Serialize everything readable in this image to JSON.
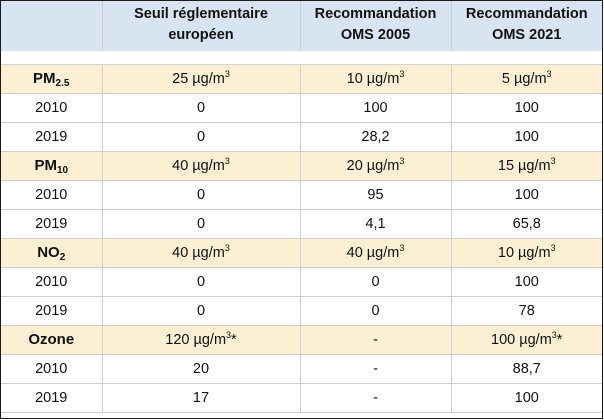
{
  "headers": {
    "col0": "",
    "col1_line1": "Seuil réglementaire",
    "col1_line2": "européen",
    "col2_line1": "Recommandation",
    "col2_line2": "OMS 2005",
    "col3_line1": "Recommandation",
    "col3_line2": "OMS 2021"
  },
  "groups": [
    {
      "name_main": "PM",
      "name_sub": "2.5",
      "eu": {
        "value": "25 µg/m",
        "sup": "3",
        "suffix": ""
      },
      "oms2005": {
        "value": "10 µg/m",
        "sup": "3",
        "suffix": ""
      },
      "oms2021": {
        "value": "5 µg/m",
        "sup": "3",
        "suffix": ""
      },
      "rows": [
        {
          "year": "2010",
          "eu": "0",
          "oms2005": "100",
          "oms2021": "100"
        },
        {
          "year": "2019",
          "eu": "0",
          "oms2005": "28,2",
          "oms2021": "100"
        }
      ]
    },
    {
      "name_main": "PM",
      "name_sub": "10",
      "eu": {
        "value": "40 µg/m",
        "sup": "3",
        "suffix": ""
      },
      "oms2005": {
        "value": "20 µg/m",
        "sup": "3",
        "suffix": ""
      },
      "oms2021": {
        "value": "15 µg/m",
        "sup": "3",
        "suffix": ""
      },
      "rows": [
        {
          "year": "2010",
          "eu": "0",
          "oms2005": "95",
          "oms2021": "100"
        },
        {
          "year": "2019",
          "eu": "0",
          "oms2005": "4,1",
          "oms2021": "65,8"
        }
      ]
    },
    {
      "name_main": "NO",
      "name_sub": "2",
      "eu": {
        "value": "40 µg/m",
        "sup": "3",
        "suffix": ""
      },
      "oms2005": {
        "value": "40 µg/m",
        "sup": "3",
        "suffix": ""
      },
      "oms2021": {
        "value": "10 µg/m",
        "sup": "3",
        "suffix": ""
      },
      "rows": [
        {
          "year": "2010",
          "eu": "0",
          "oms2005": "0",
          "oms2021": "100"
        },
        {
          "year": "2019",
          "eu": "0",
          "oms2005": "0",
          "oms2021": "78"
        }
      ]
    },
    {
      "name_main": "Ozone",
      "name_sub": "",
      "eu": {
        "value": "120 µg/m",
        "sup": "3",
        "suffix": "*"
      },
      "oms2005": {
        "value": "-",
        "sup": "",
        "suffix": ""
      },
      "oms2021": {
        "value": "100 µg/m",
        "sup": "3",
        "suffix": "*"
      },
      "rows": [
        {
          "year": "2010",
          "eu": "20",
          "oms2005": "-",
          "oms2021": "88,7"
        },
        {
          "year": "2019",
          "eu": "17",
          "oms2005": "-",
          "oms2021": "100"
        }
      ]
    }
  ],
  "colors": {
    "header_bg": "#d9e4f2",
    "group_bg": "#fcefd4",
    "border": "#1a1a1a"
  }
}
